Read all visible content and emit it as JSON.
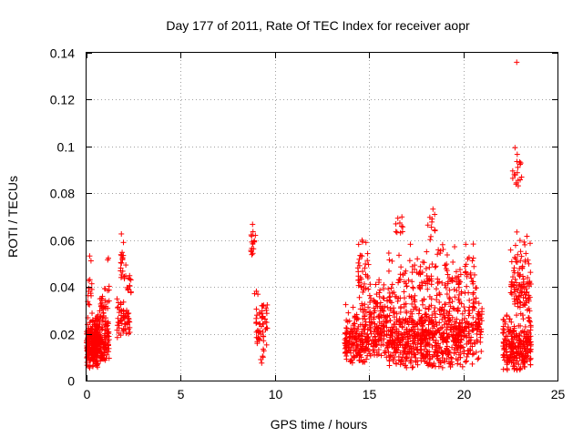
{
  "chart_data": {
    "type": "scatter",
    "title": "Day 177 of 2011, Rate Of TEC Index for receiver aopr",
    "xlabel": "GPS time / hours",
    "ylabel": "ROTI / TECUs",
    "xlim": [
      0,
      25
    ],
    "ylim": [
      0,
      0.14
    ],
    "x_ticks": [
      "0",
      "5",
      "10",
      "15",
      "20",
      "25"
    ],
    "y_ticks": [
      "0",
      "0.02",
      "0.04",
      "0.06",
      "0.08",
      "0.1",
      "0.12",
      "0.14"
    ],
    "grid": true,
    "marker": "+",
    "colors": {
      "points": "#ff0000"
    },
    "clusters": [
      {
        "x": [
          0.0,
          0.6
        ],
        "y": [
          0.005,
          0.03
        ],
        "n": 260
      },
      {
        "x": [
          0.0,
          0.3
        ],
        "y": [
          0.03,
          0.046
        ],
        "n": 12
      },
      {
        "x": [
          0.15,
          0.3
        ],
        "y": [
          0.05,
          0.056
        ],
        "n": 2
      },
      {
        "x": [
          0.5,
          1.2
        ],
        "y": [
          0.008,
          0.03
        ],
        "n": 140
      },
      {
        "x": [
          0.7,
          1.2
        ],
        "y": [
          0.028,
          0.042
        ],
        "n": 25
      },
      {
        "x": [
          1.1,
          1.2
        ],
        "y": [
          0.05,
          0.053
        ],
        "n": 2
      },
      {
        "x": [
          1.6,
          2.3
        ],
        "y": [
          0.018,
          0.036
        ],
        "n": 60
      },
      {
        "x": [
          1.8,
          2.1
        ],
        "y": [
          0.04,
          0.064
        ],
        "n": 20
      },
      {
        "x": [
          2.1,
          2.4
        ],
        "y": [
          0.036,
          0.048
        ],
        "n": 12
      },
      {
        "x": [
          8.7,
          9.0
        ],
        "y": [
          0.052,
          0.072
        ],
        "n": 16
      },
      {
        "x": [
          8.9,
          9.1
        ],
        "y": [
          0.036,
          0.041
        ],
        "n": 3
      },
      {
        "x": [
          9.0,
          9.6
        ],
        "y": [
          0.015,
          0.036
        ],
        "n": 50
      },
      {
        "x": [
          9.2,
          9.5
        ],
        "y": [
          0.006,
          0.014
        ],
        "n": 6
      },
      {
        "x": [
          13.7,
          15.0
        ],
        "y": [
          0.006,
          0.035
        ],
        "n": 180
      },
      {
        "x": [
          14.4,
          15.0
        ],
        "y": [
          0.03,
          0.062
        ],
        "n": 40
      },
      {
        "x": [
          15.0,
          16.0
        ],
        "y": [
          0.008,
          0.046
        ],
        "n": 150
      },
      {
        "x": [
          16.0,
          20.0
        ],
        "y": [
          0.005,
          0.04
        ],
        "n": 650
      },
      {
        "x": [
          16.0,
          20.0
        ],
        "y": [
          0.035,
          0.06
        ],
        "n": 120
      },
      {
        "x": [
          16.4,
          16.8
        ],
        "y": [
          0.06,
          0.07
        ],
        "n": 10
      },
      {
        "x": [
          18.1,
          18.5
        ],
        "y": [
          0.06,
          0.075
        ],
        "n": 12
      },
      {
        "x": [
          20.0,
          21.0
        ],
        "y": [
          0.006,
          0.045
        ],
        "n": 120
      },
      {
        "x": [
          20.1,
          20.6
        ],
        "y": [
          0.04,
          0.06
        ],
        "n": 20
      },
      {
        "x": [
          22.1,
          23.6
        ],
        "y": [
          0.004,
          0.03
        ],
        "n": 240
      },
      {
        "x": [
          22.5,
          23.6
        ],
        "y": [
          0.025,
          0.065
        ],
        "n": 110
      },
      {
        "x": [
          22.6,
          23.1
        ],
        "y": [
          0.082,
          0.101
        ],
        "n": 18
      },
      {
        "x": [
          22.8,
          22.9
        ],
        "y": [
          0.135,
          0.137
        ],
        "n": 1
      }
    ]
  }
}
